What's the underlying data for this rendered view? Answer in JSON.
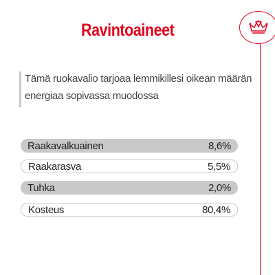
{
  "title": "Ravintoaineet",
  "description": "Tämä ruokavalio tarjoaa lemmikillesi oikean määrän energiaa sopivassa muodossa",
  "nutrients": [
    {
      "label": "Raakavalkuainen",
      "value": "8,6%"
    },
    {
      "label": "Raakarasva",
      "value": "5,5%"
    },
    {
      "label": "Tuhka",
      "value": "2,0%"
    },
    {
      "label": "Kosteus",
      "value": "80,4%"
    }
  ],
  "colors": {
    "accent": "#e2001a",
    "row_fill": "#c9c9c9"
  },
  "icons": {
    "brand": "crown-icon"
  }
}
